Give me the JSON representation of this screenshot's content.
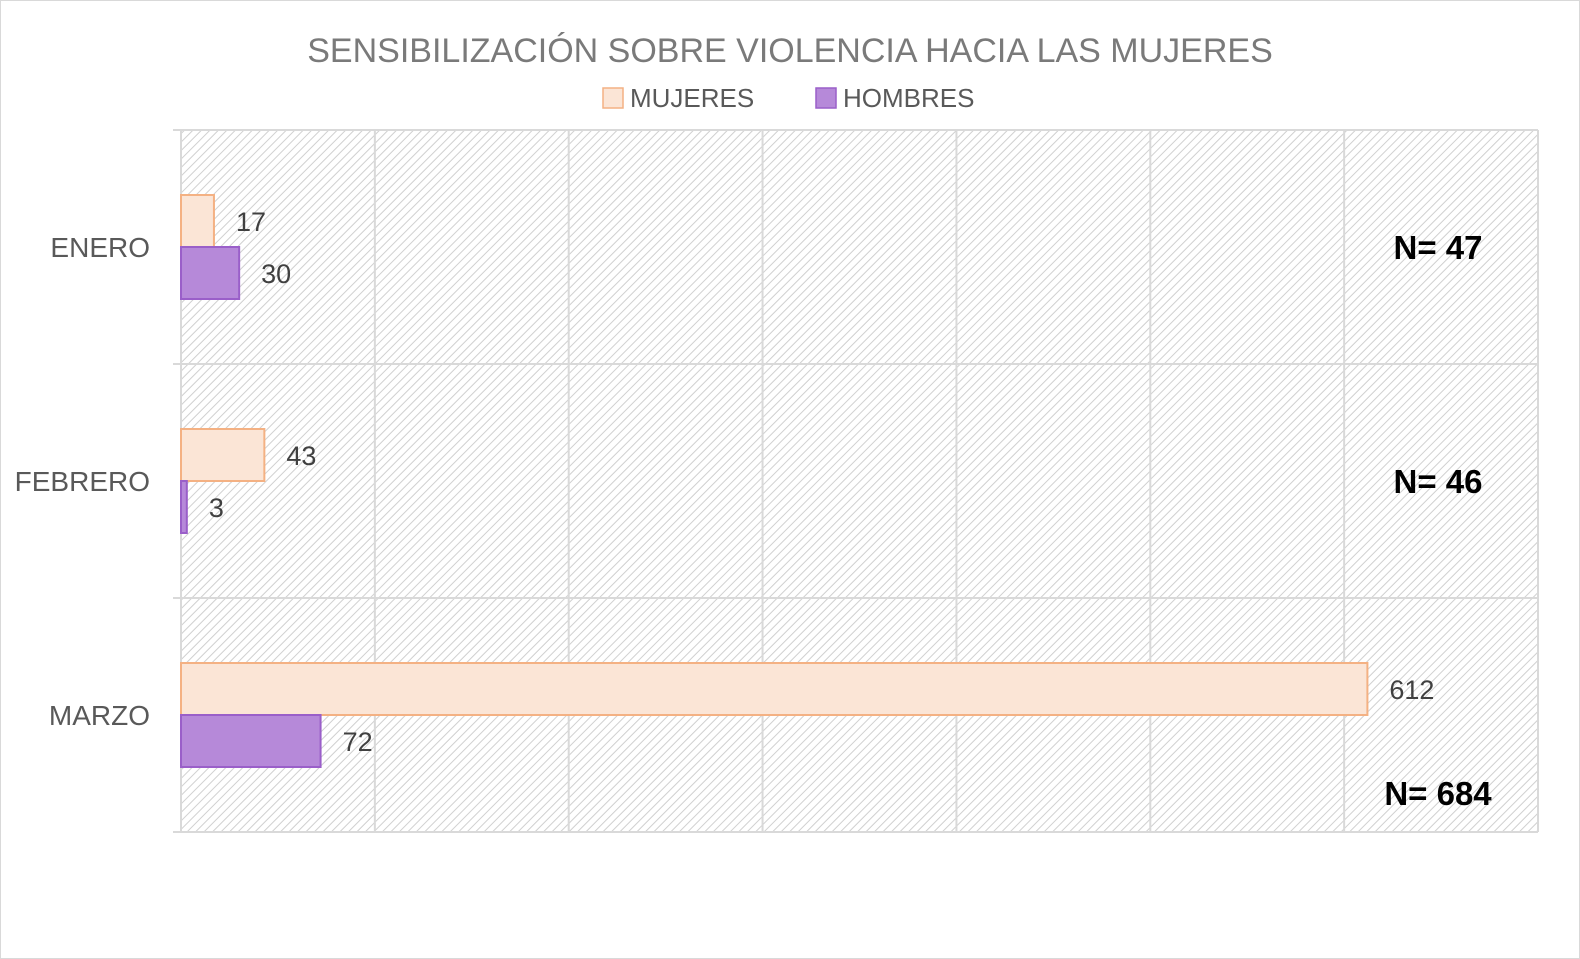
{
  "chart_data": {
    "type": "bar",
    "orientation": "horizontal",
    "title": "SENSIBILIZACIÓN SOBRE VIOLENCIA HACIA LAS MUJERES",
    "categories": [
      "ENERO",
      "FEBRERO",
      "MARZO"
    ],
    "series": [
      {
        "name": "MUJERES",
        "values": [
          17,
          43,
          612
        ],
        "color": "#fbe5d6",
        "stroke": "#f4b183"
      },
      {
        "name": "HOMBRES",
        "values": [
          30,
          3,
          72
        ],
        "color": "#b689d9",
        "stroke": "#9a5fc9"
      }
    ],
    "totals": [
      "N= 47",
      "N= 46",
      "N= 684"
    ],
    "xlim": [
      0,
      700
    ],
    "xlabel": "",
    "ylabel": "",
    "legend_position": "top",
    "grid": true,
    "plot_background": "hatched light gray"
  }
}
